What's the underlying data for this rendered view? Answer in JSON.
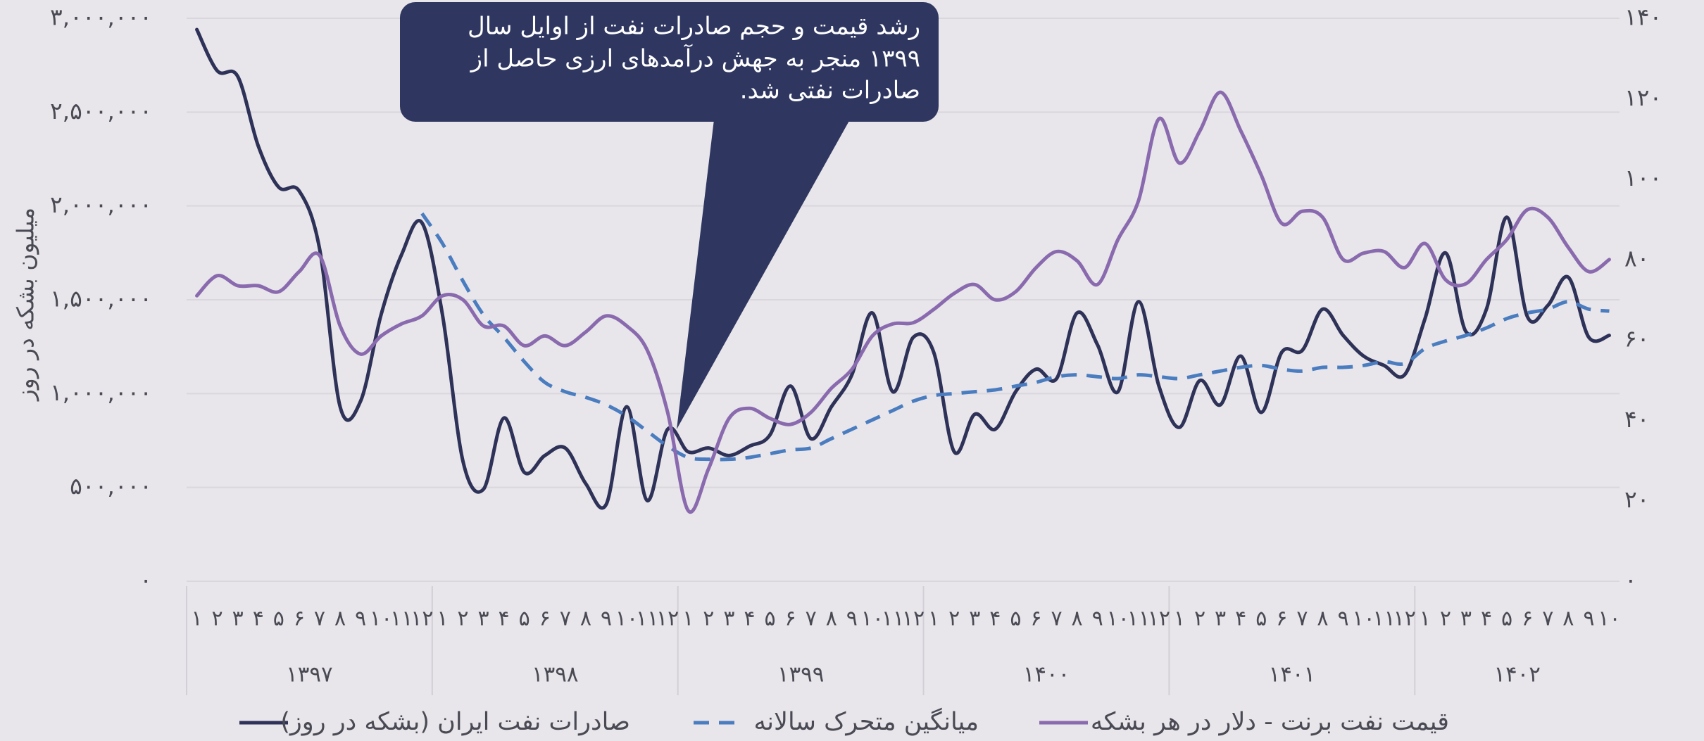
{
  "chart_data": {
    "type": "line",
    "y_label": "میلیون بشکه در روز",
    "categories": [
      "۱",
      "۲",
      "۳",
      "۴",
      "۵",
      "۶",
      "۷",
      "۸",
      "۹",
      "۱۰",
      "۱۱",
      "۱۲",
      "۱",
      "۲",
      "۳",
      "۴",
      "۵",
      "۶",
      "۷",
      "۸",
      "۹",
      "۱۰",
      "۱۱",
      "۱۲",
      "۱",
      "۲",
      "۳",
      "۴",
      "۵",
      "۶",
      "۷",
      "۸",
      "۹",
      "۱۰",
      "۱۱",
      "۱۲",
      "۱",
      "۲",
      "۳",
      "۴",
      "۵",
      "۶",
      "۷",
      "۸",
      "۹",
      "۱۰",
      "۱۱",
      "۱۲",
      "۱",
      "۲",
      "۳",
      "۴",
      "۵",
      "۶",
      "۷",
      "۸",
      "۹",
      "۱۰",
      "۱۱",
      "۱۲",
      "۱",
      "۲",
      "۳",
      "۴",
      "۵",
      "۶",
      "۷",
      "۸",
      "۹",
      "۱۰"
    ],
    "groups": [
      "۱۳۹۷",
      "۱۳۹۸",
      "۱۳۹۹",
      "۱۴۰۰",
      "۱۴۰۱",
      "۱۴۰۲"
    ],
    "series": [
      {
        "name": "صادرات نفت ایران (بشکه در روز)",
        "color": "#2e3258",
        "dash": false,
        "axis": "y",
        "values": [
          2940000,
          2720000,
          2690000,
          2320000,
          2100000,
          2080000,
          1770000,
          930000,
          960000,
          1420000,
          1740000,
          1910000,
          1420000,
          640000,
          490000,
          870000,
          580000,
          670000,
          710000,
          520000,
          410000,
          930000,
          430000,
          810000,
          690000,
          710000,
          670000,
          720000,
          780000,
          1040000,
          760000,
          930000,
          1100000,
          1430000,
          1010000,
          1300000,
          1220000,
          690000,
          890000,
          810000,
          1010000,
          1130000,
          1080000,
          1430000,
          1260000,
          1010000,
          1490000,
          1040000,
          820000,
          1070000,
          940000,
          1200000,
          900000,
          1220000,
          1230000,
          1450000,
          1310000,
          1200000,
          1150000,
          1100000,
          1400000,
          1750000,
          1330000,
          1450000,
          1940000,
          1410000,
          1470000,
          1620000,
          1300000,
          1310000
        ]
      },
      {
        "name": "میانگین متحرک سالانه",
        "color": "#4a7cc0",
        "dash": true,
        "axis": "y",
        "values": [
          null,
          null,
          null,
          null,
          null,
          null,
          null,
          null,
          null,
          null,
          null,
          1960000,
          1800000,
          1600000,
          1420000,
          1300000,
          1170000,
          1060000,
          1010000,
          980000,
          940000,
          880000,
          800000,
          720000,
          660000,
          650000,
          650000,
          660000,
          680000,
          700000,
          710000,
          760000,
          810000,
          860000,
          910000,
          960000,
          990000,
          1000000,
          1010000,
          1020000,
          1040000,
          1060000,
          1090000,
          1100000,
          1090000,
          1080000,
          1100000,
          1090000,
          1080000,
          1100000,
          1120000,
          1140000,
          1150000,
          1130000,
          1120000,
          1140000,
          1140000,
          1150000,
          1170000,
          1160000,
          1240000,
          1280000,
          1310000,
          1350000,
          1400000,
          1430000,
          1450000,
          1490000,
          1450000,
          1440000
        ]
      },
      {
        "name": "قیمت نفت برنت - دلار در هر بشکه",
        "color": "#8a6aae",
        "dash": false,
        "axis": "y2",
        "values": [
          71,
          76,
          73.5,
          73.5,
          72,
          77,
          81,
          63.5,
          56.5,
          61,
          64,
          66,
          71,
          70,
          63.5,
          63.5,
          58.6,
          61,
          58.6,
          62,
          66,
          63.5,
          57.5,
          42,
          17.6,
          28,
          40.5,
          43,
          40.5,
          39,
          42,
          48,
          52.7,
          61,
          64,
          64.3,
          67.6,
          71.6,
          73.8,
          70,
          72,
          78,
          82,
          79.7,
          73.8,
          85,
          94.6,
          115,
          104,
          112,
          121.6,
          112,
          101,
          89,
          92,
          90.5,
          80,
          81.6,
          82,
          78,
          84,
          75,
          74,
          80,
          85,
          92.4,
          90.5,
          83,
          77,
          80
        ]
      }
    ],
    "ylim": [
      0,
      3000000
    ],
    "yticks": [
      {
        "value": 0,
        "label": "۰"
      },
      {
        "value": 500000,
        "label": "۵۰۰,۰۰۰"
      },
      {
        "value": 1000000,
        "label": "۱,۰۰۰,۰۰۰"
      },
      {
        "value": 1500000,
        "label": "۱,۵۰۰,۰۰۰"
      },
      {
        "value": 2000000,
        "label": "۲,۰۰۰,۰۰۰"
      },
      {
        "value": 2500000,
        "label": "۲,۵۰۰,۰۰۰"
      },
      {
        "value": 3000000,
        "label": "۳,۰۰۰,۰۰۰"
      }
    ],
    "y2lim": [
      0,
      140
    ],
    "y2ticks": [
      {
        "value": 0,
        "label": "۰"
      },
      {
        "value": 20,
        "label": "۲۰"
      },
      {
        "value": 40,
        "label": "۴۰"
      },
      {
        "value": 60,
        "label": "۶۰"
      },
      {
        "value": 80,
        "label": "۸۰"
      },
      {
        "value": 100,
        "label": "۱۰۰"
      },
      {
        "value": 120,
        "label": "۱۲۰"
      },
      {
        "value": 140,
        "label": "۱۴۰"
      }
    ],
    "grid": true,
    "legend": "bottom",
    "annotation": {
      "lines": [
        "رشد قیمت و حجم صادرات نفت از اوایل سال",
        "۱۳۹۹ منجر به جهش درآمدهای ارزی حاصل از",
        "صادرات نفتی شد."
      ]
    }
  }
}
